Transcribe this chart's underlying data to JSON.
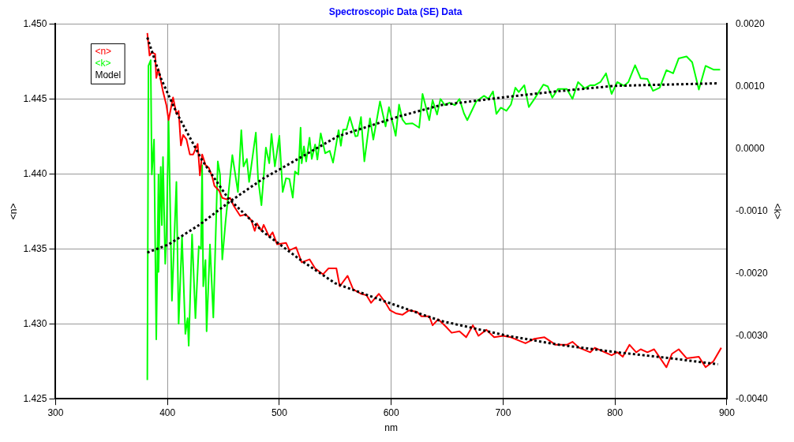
{
  "chart_data": {
    "type": "line",
    "title": "Spectroscopic Data (SE) Data",
    "xlabel": "nm",
    "ylabel": "<n>",
    "y2label": "<k>",
    "xlim": [
      300,
      900
    ],
    "xticks": [
      300,
      400,
      500,
      600,
      700,
      800,
      900
    ],
    "ylim": [
      1.425,
      1.45
    ],
    "yticks": [
      {
        "value": 1.425,
        "label": "1.425"
      },
      {
        "value": 1.43,
        "label": "1.430"
      },
      {
        "value": 1.435,
        "label": "1.435"
      },
      {
        "value": 1.44,
        "label": "1.440"
      },
      {
        "value": 1.445,
        "label": "1.445"
      },
      {
        "value": 1.45,
        "label": "1.450"
      }
    ],
    "y2lim": [
      -0.004,
      0.002
    ],
    "y2ticks": [
      {
        "value": -0.004,
        "label": "-0.0040"
      },
      {
        "value": -0.003,
        "label": "-0.0030"
      },
      {
        "value": -0.002,
        "label": "-0.0020"
      },
      {
        "value": -0.001,
        "label": "-0.0010"
      },
      {
        "value": 0,
        "label": "0.0000"
      },
      {
        "value": 0.001,
        "label": "0.0010"
      },
      {
        "value": 0.002,
        "label": "0.0020"
      }
    ],
    "grid": true,
    "legend": "top left",
    "marker": "none",
    "series": [
      {
        "name": "<n>",
        "color": "#ff0000",
        "x": [
          382,
          384,
          386,
          389,
          390,
          392,
          396,
          399,
          401,
          405,
          408,
          410,
          412,
          414,
          417,
          420,
          423,
          427,
          429,
          431,
          434,
          437,
          440,
          442,
          446,
          449,
          453,
          456,
          459,
          465,
          470,
          475,
          478,
          480,
          484,
          486,
          491,
          494,
          498,
          506,
          509,
          515,
          520,
          527,
          532,
          539,
          544,
          551,
          554,
          561,
          566,
          573,
          578,
          582,
          589,
          595,
          599,
          604,
          610,
          616,
          623,
          627,
          634,
          637,
          642,
          649,
          654,
          661,
          667,
          673,
          678,
          685,
          692,
          700,
          707,
          720,
          728,
          737,
          747,
          757,
          762,
          768,
          778,
          782,
          797,
          802,
          807,
          813,
          819,
          823,
          829,
          835,
          846,
          851,
          857,
          864,
          875,
          881,
          888,
          895
        ],
        "values": [
          1.4494,
          1.4479,
          1.4481,
          1.448,
          1.4464,
          1.447,
          1.4455,
          1.4446,
          1.4436,
          1.4451,
          1.444,
          1.4442,
          1.4419,
          1.4426,
          1.4423,
          1.4413,
          1.4413,
          1.442,
          1.4399,
          1.4413,
          1.4406,
          1.4404,
          1.4398,
          1.4392,
          1.4389,
          1.4384,
          1.4383,
          1.4384,
          1.4379,
          1.4372,
          1.4373,
          1.4369,
          1.4362,
          1.4367,
          1.4362,
          1.4366,
          1.4358,
          1.4361,
          1.4353,
          1.4354,
          1.4349,
          1.4351,
          1.4341,
          1.4343,
          1.4337,
          1.4333,
          1.4337,
          1.4337,
          1.4325,
          1.4332,
          1.4323,
          1.432,
          1.4319,
          1.4314,
          1.432,
          1.4314,
          1.4309,
          1.4307,
          1.4306,
          1.4309,
          1.4308,
          1.4305,
          1.4305,
          1.4299,
          1.4303,
          1.4298,
          1.4294,
          1.4295,
          1.4291,
          1.4299,
          1.4292,
          1.4296,
          1.4291,
          1.4292,
          1.4291,
          1.4287,
          1.429,
          1.4291,
          1.4286,
          1.4286,
          1.4288,
          1.4284,
          1.4281,
          1.4284,
          1.4279,
          1.4281,
          1.4278,
          1.4286,
          1.4281,
          1.4283,
          1.4281,
          1.4283,
          1.4271,
          1.428,
          1.4283,
          1.4277,
          1.4278,
          1.4271,
          1.4275,
          1.4284
        ]
      },
      {
        "name": "<k>",
        "color": "#00ff00",
        "axis": "y2",
        "x": [
          382,
          383,
          385,
          386,
          388,
          390,
          392,
          392,
          394,
          395,
          396,
          398,
          399,
          401,
          404,
          408,
          410,
          413,
          416,
          418,
          419,
          422,
          425,
          428,
          430,
          431,
          432,
          434,
          435,
          438,
          441,
          445,
          447,
          449,
          452,
          458,
          463,
          466,
          468,
          471,
          473,
          479,
          481,
          484,
          488,
          491,
          493,
          496,
          500,
          503,
          506,
          509,
          512,
          514,
          517,
          519,
          520,
          522,
          524,
          527,
          529,
          532,
          534,
          537,
          541,
          545,
          548,
          553,
          555,
          557,
          560,
          563,
          568,
          570,
          573,
          576,
          581,
          584,
          590,
          595,
          598,
          604,
          607,
          610,
          613,
          619,
          625,
          628,
          634,
          637,
          641,
          644,
          648,
          652,
          657,
          661,
          665,
          668,
          676,
          683,
          687,
          691,
          694,
          698,
          703,
          707,
          711,
          714,
          719,
          723,
          728,
          736,
          740,
          744,
          749,
          757,
          762,
          767,
          773,
          778,
          782,
          787,
          792,
          797,
          802,
          808,
          812,
          818,
          823,
          829,
          834,
          840,
          846,
          852,
          857,
          864,
          869,
          875,
          881,
          888,
          894
        ],
        "values": [
          -0.0037,
          0.00133,
          0.00142,
          -0.00041,
          0.00015,
          -0.00305,
          -0.00041,
          -0.00197,
          -0.00029,
          -0.00122,
          -0.00013,
          -0.00184,
          -0.00147,
          0.00045,
          -0.00243,
          -0.00053,
          -0.0028,
          -0.0014,
          -0.00296,
          -0.00271,
          -0.00315,
          -0.00137,
          -0.00271,
          -0.00156,
          -0.0016,
          -0.00026,
          -0.0022,
          -0.00178,
          -0.00292,
          -0.00153,
          -0.0027,
          -0.0002,
          -0.00041,
          -0.00177,
          -0.00115,
          -0.0001,
          -0.00069,
          0.0003,
          -0.00028,
          -0.00016,
          -0.00053,
          0.00026,
          -0.00048,
          -0.0009,
          2e-05,
          -0.00023,
          0.00024,
          -0.00028,
          0.00021,
          -0.00069,
          -0.00047,
          -0.00048,
          -0.00078,
          -0.00036,
          -0.00041,
          0.00034,
          -0.00023,
          4e-05,
          -0.0002,
          0.00018,
          -0.00016,
          7e-05,
          -0.00017,
          0.00025,
          -7e-05,
          -3e-05,
          -0.00022,
          0.0003,
          5e-05,
          0.00031,
          0.00031,
          0.00051,
          0.0002,
          0.00021,
          0.00051,
          -0.0002,
          0.00049,
          0.00015,
          0.00076,
          0.00036,
          0.00067,
          0.00021,
          0.00071,
          0.00047,
          0.0004,
          0.00041,
          0.00034,
          0.00088,
          0.00046,
          0.00078,
          0.00055,
          0.0008,
          0.0007,
          0.00074,
          0.0007,
          0.0008,
          0.00057,
          0.00046,
          0.00076,
          0.00085,
          0.0008,
          0.00092,
          0.00056,
          0.00066,
          0.00061,
          0.00071,
          0.00098,
          0.00091,
          0.00102,
          0.00067,
          0.0008,
          0.00103,
          0.001,
          0.00082,
          0.00096,
          0.00096,
          0.0008,
          0.00107,
          0.00097,
          0.00102,
          0.00102,
          0.00107,
          0.00121,
          0.00088,
          0.00107,
          0.00101,
          0.00107,
          0.00134,
          0.00113,
          0.00112,
          0.00093,
          0.00098,
          0.00126,
          0.00121,
          0.00145,
          0.00148,
          0.00139,
          0.00095,
          0.00133,
          0.00127,
          0.00127
        ]
      },
      {
        "name": "Model",
        "color": "#000000",
        "line_style": "dotted",
        "x": [
          382,
          394,
          408,
          431,
          454,
          486,
          520,
          550,
          594,
          644,
          704,
          750,
          802,
          850,
          892
        ],
        "values": [
          1.4491,
          1.4464,
          1.4441,
          1.4409,
          1.4384,
          1.4361,
          1.4342,
          1.4327,
          1.4315,
          1.4302,
          1.4292,
          1.4286,
          1.4281,
          1.4277,
          1.4273
        ]
      },
      {
        "color": "#000000",
        "line_style": "dotted",
        "axis": "y2",
        "x": [
          382,
          401,
          429,
          456,
          486,
          501,
          552,
          607,
          644,
          702,
          747,
          800,
          892
        ],
        "values": [
          -0.00166,
          -0.00153,
          -0.00121,
          -0.00084,
          -0.00047,
          -0.00032,
          0.0002,
          0.00052,
          0.0007,
          0.00083,
          0.00092,
          0.00101,
          0.00105
        ]
      }
    ]
  }
}
